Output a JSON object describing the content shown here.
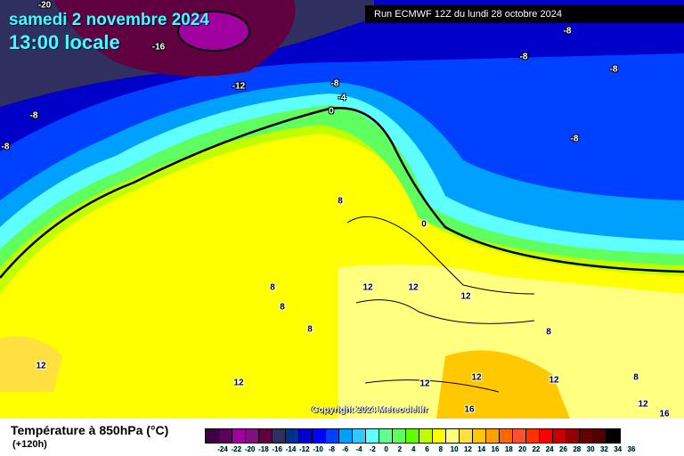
{
  "header": {
    "date": "samedi 2 novembre 2024",
    "time": "13:00 locale",
    "run": "Run ECMWF 12Z du lundi 28 octobre 2024"
  },
  "copyright": "Copyright 2024 Meteociel.fr",
  "legend": {
    "title": "Température à 850hPa (°C)",
    "subtitle": "(+120h)",
    "colors": [
      "#3d0040",
      "#5c0060",
      "#a000a0",
      "#801080",
      "#600040",
      "#303060",
      "#003090",
      "#0000c8",
      "#0000ff",
      "#0040ff",
      "#00a0ff",
      "#30c8ff",
      "#60ffff",
      "#60ff90",
      "#60ff60",
      "#60ff00",
      "#c0ff00",
      "#ffff00",
      "#ffff80",
      "#ffe040",
      "#ffc800",
      "#ffa000",
      "#ff6800",
      "#ff5030",
      "#ff3000",
      "#ff0000",
      "#c80000",
      "#960000",
      "#640000",
      "#500000",
      "#000000"
    ],
    "ticks": [
      "-24",
      "-22",
      "-20",
      "-18",
      "-16",
      "-14",
      "-12",
      "-10",
      "-8",
      "-6",
      "-4",
      "-2",
      "0",
      "2",
      "4",
      "6",
      "8",
      "10",
      "12",
      "14",
      "16",
      "18",
      "20",
      "22",
      "24",
      "26",
      "28",
      "30",
      "32",
      "34",
      "36"
    ]
  },
  "map_labels": [
    "-20",
    "-16",
    "-12",
    "-8",
    "-4",
    "0",
    "-8",
    "-8",
    "-8",
    "-8",
    "-8",
    "-8",
    "8",
    "0",
    "8",
    "8",
    "8",
    "12",
    "12",
    "12",
    "8",
    "12",
    "12",
    "12",
    "12",
    "8",
    "12",
    "12",
    "16",
    "16"
  ]
}
